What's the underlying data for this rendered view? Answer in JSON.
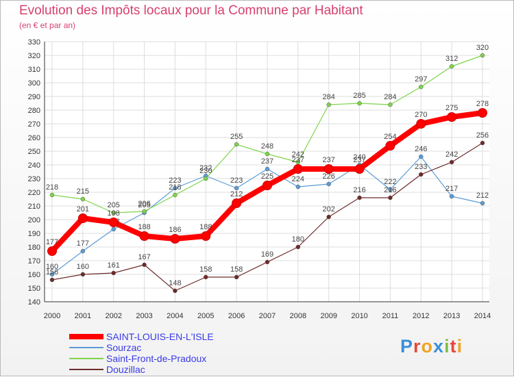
{
  "chart_data": {
    "type": "line",
    "title": "Evolution des Impôts locaux pour la Commune par Habitant",
    "subtitle": "(en € et par an)",
    "xlabel": "",
    "ylabel": "",
    "ylim": [
      140,
      330
    ],
    "ytick_step": 10,
    "grid": true,
    "x": [
      2000,
      2001,
      2002,
      2003,
      2004,
      2005,
      2006,
      2007,
      2008,
      2009,
      2010,
      2011,
      2012,
      2013,
      2014
    ],
    "series": [
      {
        "name": "SAINT-LOUIS-EN-L'ISLE",
        "color": "#ff0000",
        "emphasis": true,
        "values": [
          177,
          201,
          198,
          188,
          186,
          188,
          212,
          225,
          237,
          237,
          237,
          254,
          270,
          275,
          278
        ]
      },
      {
        "name": "Sourzac",
        "color": "#5b9bd5",
        "values": [
          160,
          177,
          193,
          205,
          223,
          232,
          223,
          237,
          224,
          226,
          240,
          222,
          246,
          217,
          212
        ]
      },
      {
        "name": "Saint-Front-de-Pradoux",
        "color": "#7dd44a",
        "values": [
          218,
          215,
          205,
          206,
          218,
          230,
          255,
          248,
          242,
          284,
          285,
          284,
          297,
          312,
          320
        ]
      },
      {
        "name": "Douzillac",
        "color": "#6e2a2a",
        "values": [
          156,
          160,
          161,
          167,
          148,
          158,
          158,
          169,
          180,
          202,
          216,
          216,
          233,
          242,
          256
        ]
      }
    ],
    "legend_position": "bottom-left"
  },
  "brand": {
    "letters": [
      "P",
      "r",
      "o",
      "x",
      "i",
      "t",
      "i"
    ],
    "colors": [
      "#3b8fd9",
      "#e8463b",
      "#f2a323",
      "#3b8fd9",
      "#7dc142",
      "#e8463b",
      "#f2a323"
    ]
  }
}
